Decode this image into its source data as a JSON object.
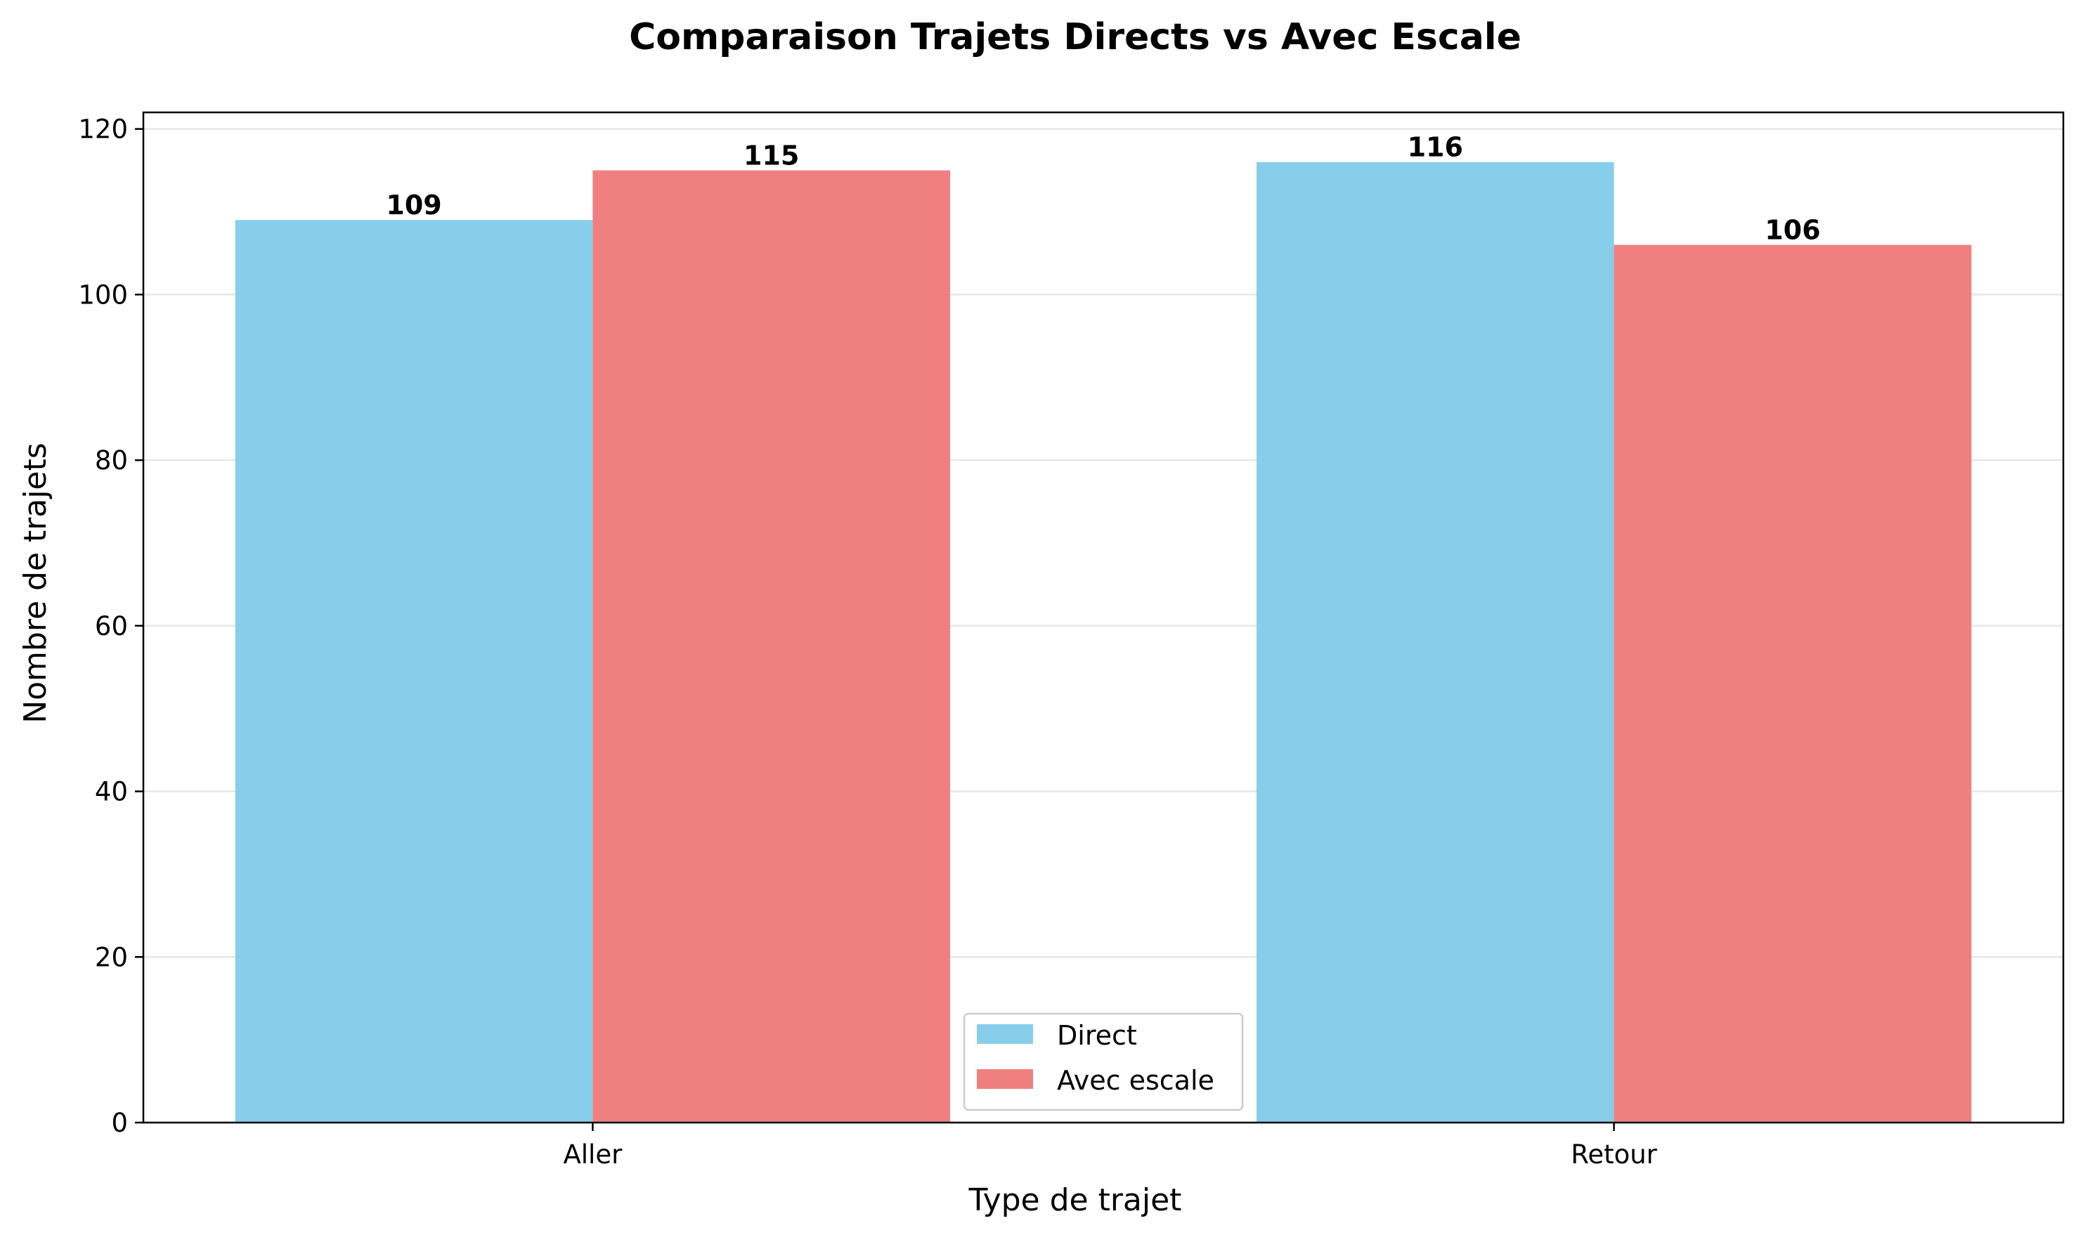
{
  "chart_data": {
    "type": "bar",
    "title": "Comparaison Trajets Directs vs Avec Escale",
    "xlabel": "Type de trajet",
    "ylabel": "Nombre de trajets",
    "categories": [
      "Aller",
      "Retour"
    ],
    "series": [
      {
        "name": "Direct",
        "values": [
          109,
          116
        ],
        "color": "#87CEEB"
      },
      {
        "name": "Avec escale",
        "values": [
          115,
          106
        ],
        "color": "#F08080"
      }
    ],
    "ylim": [
      0,
      122
    ],
    "yticks": [
      0,
      20,
      40,
      60,
      80,
      100,
      120
    ],
    "grid": "horizontal",
    "legend_position": "bottom-center",
    "value_labels": true
  }
}
